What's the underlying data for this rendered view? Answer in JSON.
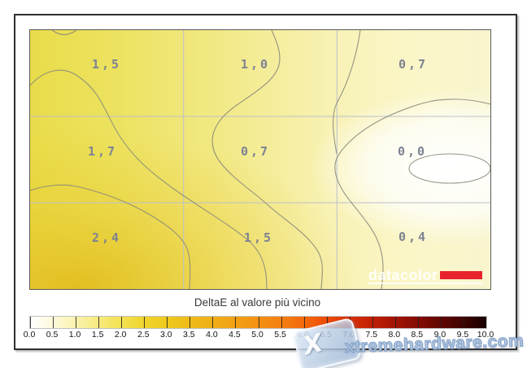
{
  "chart_data": {
    "type": "heatmap",
    "title": "DeltaE al valore più vicino",
    "grid": {
      "rows": 3,
      "cols": 3
    },
    "values": [
      [
        1.5,
        1.0,
        0.7
      ],
      [
        1.7,
        0.7,
        0.0
      ],
      [
        2.4,
        1.5,
        0.4
      ]
    ],
    "contour_levels": [
      0.5,
      1.0,
      1.5,
      2.0
    ],
    "colorbar": {
      "min": 0.0,
      "max": 10.0,
      "step": 0.5,
      "legend_position": "bottom"
    }
  },
  "plot": {
    "cells": [
      {
        "label": "1,5"
      },
      {
        "label": "1,0"
      },
      {
        "label": "0,7"
      },
      {
        "label": "1,7"
      },
      {
        "label": "0,7"
      },
      {
        "label": "0,0"
      },
      {
        "label": "2,4"
      },
      {
        "label": "1,5"
      },
      {
        "label": "0,4"
      }
    ],
    "value_color": "#7d8292",
    "datacolor": {
      "text": "datacolor",
      "bar_color": "#e8232d"
    }
  },
  "colorbar": {
    "title": "DeltaE al valore più vicino",
    "ticks": [
      "0.0",
      "0.5",
      "1.0",
      "1.5",
      "2.0",
      "2.5",
      "3.0",
      "3.5",
      "4.0",
      "4.5",
      "5.0",
      "5.5",
      "6.0",
      "6.5",
      "7.0",
      "7.5",
      "8.0",
      "8.5",
      "9.0",
      "9.5",
      "10.0"
    ],
    "stops": [
      "#ffffff",
      "#fdf9da",
      "#faf2ae",
      "#f7ea7e",
      "#f3e151",
      "#f0d52c",
      "#eec91d",
      "#efbc1a",
      "#f0ae17",
      "#f2a015",
      "#f49112",
      "#f58010",
      "#f4690d",
      "#ec4c09",
      "#da3106",
      "#c01e05",
      "#a31304",
      "#840c03",
      "#620702",
      "#3d0401",
      "#170100"
    ]
  },
  "watermark": {
    "text": "xtremehardware.com",
    "icon": "x-badge",
    "icon_glyph": "X"
  }
}
